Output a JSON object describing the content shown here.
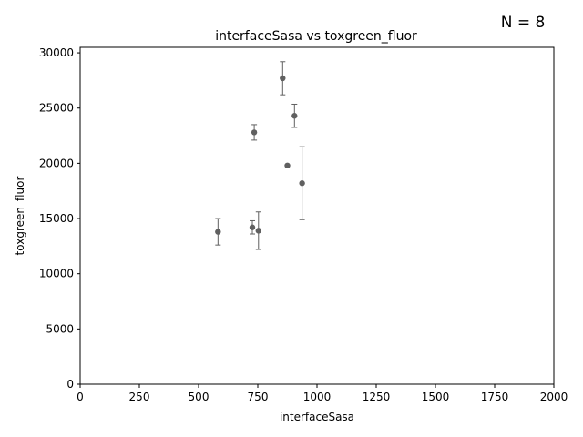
{
  "chart_data": {
    "type": "scatter",
    "title": "interfaceSasa vs toxgreen_fluor",
    "annotation": "N = 8",
    "xlabel": "interfaceSasa",
    "ylabel": "toxgreen_fluor",
    "xlim": [
      0,
      2000
    ],
    "ylim": [
      0,
      30500
    ],
    "xticks": [
      0,
      250,
      500,
      750,
      1000,
      1250,
      1500,
      1750,
      2000
    ],
    "yticks": [
      0,
      5000,
      10000,
      15000,
      20000,
      25000,
      30000
    ],
    "grid": false,
    "color": "#606060",
    "points": [
      {
        "x": 582,
        "y": 13800,
        "err": 1200
      },
      {
        "x": 727,
        "y": 14200,
        "err": 600
      },
      {
        "x": 735,
        "y": 22800,
        "err": 700
      },
      {
        "x": 753,
        "y": 13900,
        "err": 1700
      },
      {
        "x": 855,
        "y": 27700,
        "err": 1500
      },
      {
        "x": 875,
        "y": 19800,
        "err": 0
      },
      {
        "x": 905,
        "y": 24300,
        "err": 1050
      },
      {
        "x": 937,
        "y": 18200,
        "err": 3300
      }
    ]
  }
}
